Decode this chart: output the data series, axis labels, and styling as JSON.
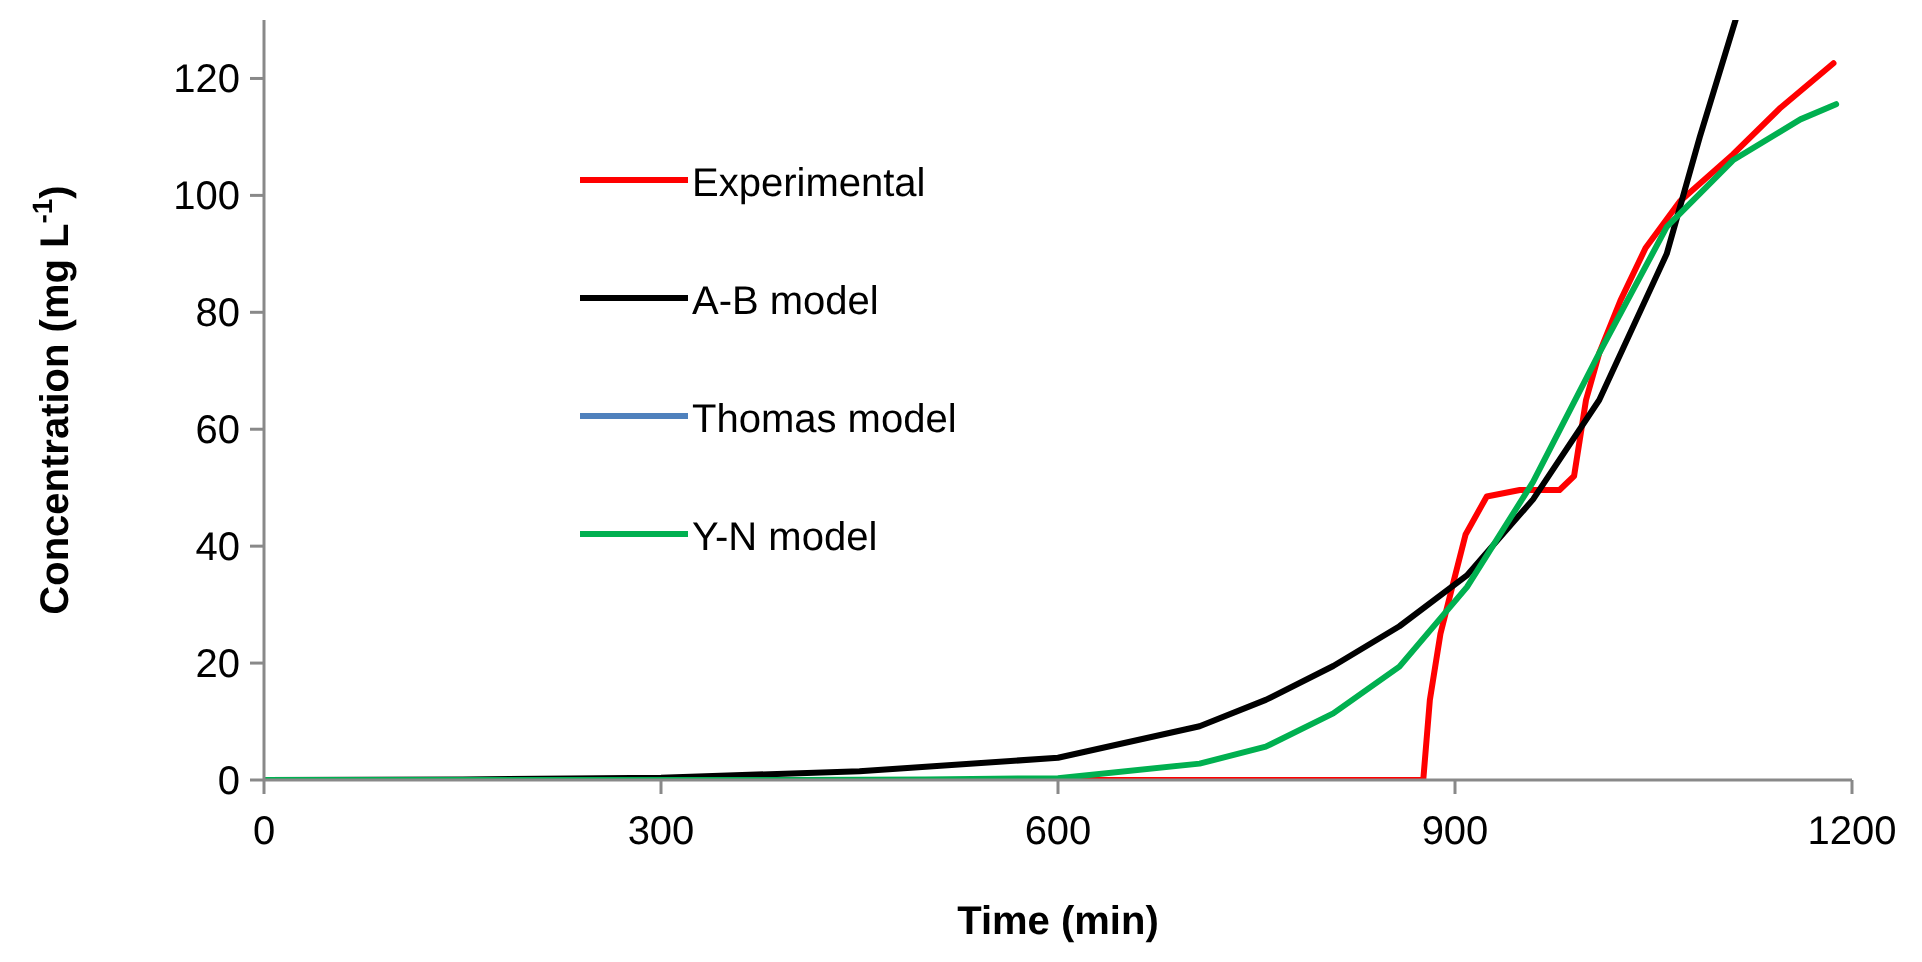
{
  "chart_data": {
    "type": "line",
    "xlabel": "Time (min)",
    "ylabel": "Concentration (mg L$^{-1}$)",
    "xlim": [
      0,
      1200
    ],
    "ylim": [
      0,
      130
    ],
    "xticks": [
      0,
      300,
      600,
      900,
      1200
    ],
    "yticks": [
      0,
      20,
      40,
      60,
      80,
      100,
      120
    ],
    "grid": false,
    "legend": "top left",
    "line_style": "solid",
    "series": [
      {
        "name": "Experimental",
        "color": "#ff0000",
        "x": [
          0,
          300,
          600,
          876,
          881,
          889,
          899,
          908,
          924,
          949,
          979,
          990,
          999,
          1009,
          1025,
          1044,
          1070,
          1110,
          1146,
          1186
        ],
        "values": [
          0,
          0,
          0,
          0,
          13.7,
          25,
          34,
          42,
          48.5,
          49.6,
          49.6,
          52,
          65,
          73,
          82,
          91,
          99,
          107,
          115,
          122.6
        ]
      },
      {
        "name": "A-B model",
        "color": "#000000",
        "x": [
          0,
          150,
          300,
          450,
          600,
          707,
          757,
          808,
          858,
          909,
          959,
          1009,
          1060,
          1085,
          1112
        ],
        "values": [
          0,
          0.1,
          0.4,
          1.5,
          3.8,
          9.2,
          13.7,
          19.5,
          26.3,
          35,
          48,
          65,
          90,
          110,
          130
        ]
      },
      {
        "name": "Thomas model",
        "color": "#4f81bd"
      },
      {
        "name": "Y-N model",
        "color": "#00b050",
        "x": [
          0,
          400,
          500,
          600,
          707,
          757,
          808,
          858,
          909,
          959,
          1009,
          1060,
          1110,
          1161,
          1188
        ],
        "values": [
          0,
          0,
          0.1,
          0.3,
          2.8,
          5.7,
          11.4,
          19.4,
          33,
          51,
          73,
          94.6,
          106,
          113,
          115.6
        ]
      }
    ]
  }
}
